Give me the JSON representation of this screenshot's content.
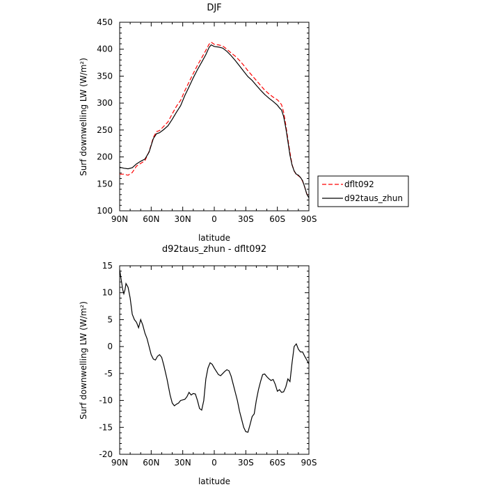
{
  "chart_data": [
    {
      "type": "line",
      "title": "DJF",
      "xlabel": "latitude",
      "ylabel": "Surf downwelling LW (W/m²)",
      "xlim": [
        -90,
        90
      ],
      "ylim": [
        100,
        450
      ],
      "x_ticks": [
        -90,
        -60,
        -30,
        0,
        30,
        60,
        90
      ],
      "x_tick_labels": [
        "90N",
        "60N",
        "30N",
        "0",
        "30S",
        "60S",
        "90S"
      ],
      "y_ticks": [
        100,
        150,
        200,
        250,
        300,
        350,
        400,
        450
      ],
      "y_tick_labels": [
        "100",
        "150",
        "200",
        "250",
        "300",
        "350",
        "400",
        "450"
      ],
      "legend": "right",
      "series": [
        {
          "name": "dflt092",
          "color": "#ff0000",
          "dash": "dashed",
          "x": [
            -90,
            -86,
            -82,
            -78,
            -74,
            -70,
            -66,
            -62,
            -58,
            -55,
            -52,
            -48,
            -44,
            -40,
            -36,
            -32,
            -28,
            -24,
            -20,
            -16,
            -12,
            -8,
            -5,
            -3,
            0,
            4,
            8,
            12,
            16,
            20,
            24,
            28,
            32,
            36,
            40,
            44,
            48,
            52,
            56,
            60,
            62,
            64,
            66,
            68,
            70,
            72,
            74,
            76,
            78,
            80,
            82,
            84,
            86,
            88,
            90
          ],
          "y": [
            168,
            168,
            166,
            171,
            183,
            188,
            193,
            210,
            236,
            247,
            249,
            257,
            265,
            280,
            294,
            305,
            323,
            339,
            355,
            370,
            384,
            398,
            409,
            413,
            409,
            408,
            406,
            400,
            393,
            387,
            379,
            370,
            360,
            351,
            342,
            333,
            324,
            317,
            311,
            306,
            302,
            297,
            283,
            259,
            233,
            208,
            186,
            174,
            167,
            165,
            162,
            155,
            144,
            131,
            127
          ]
        },
        {
          "name": "d92taus_zhun",
          "color": "#000000",
          "dash": "solid",
          "x": [
            -90,
            -86,
            -82,
            -78,
            -74,
            -70,
            -66,
            -62,
            -58,
            -55,
            -52,
            -48,
            -44,
            -40,
            -36,
            -32,
            -28,
            -24,
            -20,
            -16,
            -12,
            -8,
            -5,
            -3,
            0,
            4,
            8,
            12,
            16,
            20,
            24,
            28,
            32,
            36,
            40,
            44,
            48,
            52,
            56,
            60,
            62,
            64,
            66,
            68,
            70,
            72,
            74,
            76,
            78,
            80,
            82,
            84,
            86,
            88,
            90
          ],
          "y": [
            181,
            179,
            178,
            180,
            187,
            192,
            196,
            209,
            234,
            243,
            245,
            251,
            258,
            270,
            283,
            295,
            314,
            330,
            347,
            362,
            376,
            390,
            403,
            408,
            405,
            404,
            402,
            396,
            388,
            379,
            369,
            359,
            349,
            342,
            333,
            324,
            316,
            309,
            303,
            296,
            291,
            287,
            275,
            254,
            229,
            203,
            185,
            174,
            168,
            166,
            162,
            156,
            144,
            131,
            124
          ]
        }
      ]
    },
    {
      "type": "line",
      "title": "d92taus_zhun - dflt092",
      "xlabel": "latitude",
      "ylabel": "Surf downwelling LW (W/m²)",
      "xlim": [
        -90,
        90
      ],
      "ylim": [
        -20,
        15
      ],
      "x_ticks": [
        -90,
        -60,
        -30,
        0,
        30,
        60,
        90
      ],
      "x_tick_labels": [
        "90N",
        "60N",
        "30N",
        "0",
        "30S",
        "60S",
        "90S"
      ],
      "y_ticks": [
        -20,
        -15,
        -10,
        -5,
        0,
        5,
        10,
        15
      ],
      "y_tick_labels": [
        "-20",
        "-15",
        "-10",
        "-5",
        "0",
        "5",
        "10",
        "15"
      ],
      "legend": "none",
      "series": [
        {
          "color": "#000000",
          "dash": "solid",
          "x": [
            -90,
            -89,
            -87,
            -86,
            -85,
            -84,
            -82,
            -80,
            -78,
            -76,
            -74,
            -72,
            -70,
            -68,
            -66,
            -64,
            -62,
            -60,
            -58,
            -56,
            -54,
            -52,
            -50,
            -48,
            -45,
            -42,
            -40,
            -38,
            -36,
            -34,
            -32,
            -30,
            -28,
            -26,
            -24,
            -22,
            -20,
            -18,
            -16,
            -14,
            -12,
            -10,
            -8,
            -6,
            -4,
            -2,
            0,
            2,
            4,
            6,
            8,
            10,
            12,
            14,
            16,
            18,
            20,
            22,
            24,
            26,
            28,
            30,
            32,
            34,
            36,
            38,
            40,
            42,
            44,
            46,
            48,
            50,
            52,
            54,
            56,
            58,
            60,
            62,
            64,
            66,
            68,
            70,
            72,
            74,
            76,
            78,
            80,
            82,
            84,
            86,
            88,
            90
          ],
          "y": [
            14.3,
            13.0,
            10.5,
            9.8,
            10.5,
            11.7,
            11.0,
            9.0,
            6.0,
            5.0,
            4.5,
            3.5,
            5.0,
            4.0,
            2.5,
            1.5,
            0.0,
            -1.5,
            -2.3,
            -2.5,
            -1.8,
            -1.5,
            -2.0,
            -3.5,
            -6.0,
            -9.0,
            -10.5,
            -11.0,
            -10.7,
            -10.5,
            -10.0,
            -9.9,
            -9.8,
            -9.3,
            -8.5,
            -9.0,
            -8.7,
            -8.8,
            -10.0,
            -11.5,
            -11.8,
            -10.0,
            -6.0,
            -4.0,
            -3.0,
            -3.3,
            -4.0,
            -4.6,
            -5.2,
            -5.4,
            -5.0,
            -4.6,
            -4.3,
            -4.5,
            -5.5,
            -7.0,
            -8.5,
            -10.0,
            -12.0,
            -13.5,
            -15.0,
            -15.8,
            -15.9,
            -14.5,
            -13.0,
            -12.5,
            -10.0,
            -8.0,
            -6.5,
            -5.2,
            -5.1,
            -5.6,
            -6.0,
            -6.3,
            -6.1,
            -7.0,
            -8.3,
            -8.0,
            -8.5,
            -8.4,
            -7.5,
            -6.0,
            -6.5,
            -3.0,
            0.0,
            0.5,
            -0.5,
            -1.0,
            -1.0,
            -1.8,
            -2.5,
            -3.2
          ]
        }
      ]
    }
  ]
}
